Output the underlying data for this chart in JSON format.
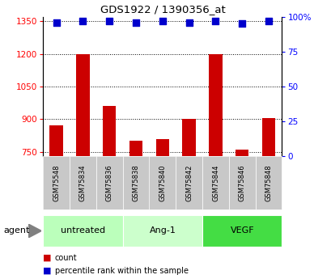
{
  "title": "GDS1922 / 1390356_at",
  "samples": [
    "GSM75548",
    "GSM75834",
    "GSM75836",
    "GSM75838",
    "GSM75840",
    "GSM75842",
    "GSM75844",
    "GSM75846",
    "GSM75848"
  ],
  "count_values": [
    870,
    1200,
    960,
    800,
    810,
    900,
    1200,
    760,
    905
  ],
  "percentile_values": [
    96,
    97,
    97,
    96,
    97,
    96,
    97,
    95,
    97
  ],
  "ylim_left": [
    730,
    1370
  ],
  "yticks_left": [
    750,
    900,
    1050,
    1200,
    1350
  ],
  "ylim_right": [
    0,
    100
  ],
  "yticks_right": [
    0,
    25,
    50,
    75,
    100
  ],
  "bar_color": "#cc0000",
  "dot_color": "#0000cc",
  "background_color": "#ffffff",
  "tick_area_color": "#c8c8c8",
  "groups": [
    {
      "label": "untreated",
      "indices": [
        0,
        1,
        2
      ],
      "color": "#bbffbb"
    },
    {
      "label": "Ang-1",
      "indices": [
        3,
        4,
        5
      ],
      "color": "#ccffcc"
    },
    {
      "label": "VEGF",
      "indices": [
        6,
        7,
        8
      ],
      "color": "#44dd44"
    }
  ],
  "legend_count_label": "count",
  "legend_pct_label": "percentile rank within the sample",
  "agent_label": "agent",
  "bar_width": 0.5,
  "dot_size": 30
}
